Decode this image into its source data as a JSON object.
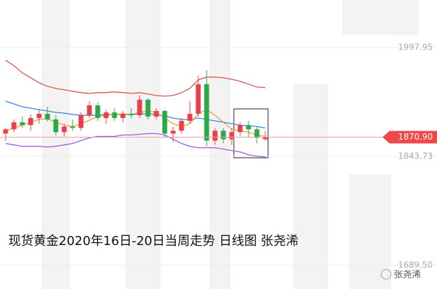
{
  "chart_data": {
    "type": "candlestick",
    "title": "现货黄金2020年16日-20日当周走势  日线图  张尧浠",
    "watermark": "张尧浠",
    "categories": [
      null,
      null,
      null,
      null,
      null,
      null,
      null,
      null,
      null,
      null,
      null,
      null,
      null,
      null,
      null,
      null,
      null,
      null,
      null,
      null,
      null,
      null,
      null,
      null,
      null,
      null,
      null,
      null,
      null,
      null,
      null,
      null
    ],
    "open": [
      1876,
      1882,
      1892,
      1888,
      1898,
      1904,
      1896,
      1878,
      1886,
      1884,
      1902,
      1916,
      1898,
      1906,
      1898,
      1904,
      1902,
      1924,
      1900,
      1908,
      1876,
      1880,
      1894,
      1904,
      1946,
      1866,
      1880,
      1868,
      1878,
      1888,
      1882,
      1868
    ],
    "high": [
      1884,
      1896,
      1900,
      1903,
      1910,
      1914,
      1902,
      1890,
      1896,
      1906,
      1922,
      1920,
      1910,
      1912,
      1908,
      1912,
      1930,
      1926,
      1912,
      1910,
      1886,
      1898,
      1922,
      1958,
      1966,
      1884,
      1884,
      1884,
      1892,
      1894,
      1886,
      1880
    ],
    "low": [
      1866,
      1878,
      1884,
      1880,
      1890,
      1893,
      1874,
      1872,
      1880,
      1880,
      1898,
      1894,
      1890,
      1894,
      1892,
      1898,
      1898,
      1896,
      1896,
      1870,
      1864,
      1876,
      1890,
      1900,
      1858,
      1860,
      1862,
      1860,
      1872,
      1870,
      1862,
      1866
    ],
    "close": [
      1882,
      1892,
      1888,
      1898,
      1904,
      1896,
      1878,
      1886,
      1884,
      1902,
      1916,
      1898,
      1906,
      1898,
      1904,
      1902,
      1924,
      1900,
      1908,
      1876,
      1880,
      1894,
      1904,
      1946,
      1866,
      1880,
      1868,
      1878,
      1888,
      1882,
      1870,
      1870.9
    ],
    "up_color": "#e8404a",
    "down_color": "#2aa84a",
    "overlays": [
      {
        "color": "#d9534f",
        "values": [
          1980,
          1972,
          1962,
          1955,
          1948,
          1943,
          1940,
          1938,
          1936,
          1934,
          1933,
          1934,
          1934,
          1935,
          1934,
          1933,
          1934,
          1932,
          1930,
          1929,
          1930,
          1934,
          1940,
          1952,
          1956,
          1956,
          1955,
          1953,
          1950,
          1946,
          1942,
          1941
        ]
      },
      {
        "color": "#3a86d9",
        "values": [
          1922,
          1918,
          1914,
          1912,
          1910,
          1908,
          1906,
          1905,
          1903,
          1902,
          1902,
          1902,
          1903,
          1903,
          1903,
          1903,
          1904,
          1904,
          1903,
          1901,
          1898,
          1896,
          1896,
          1898,
          1896,
          1894,
          1892,
          1890,
          1888,
          1887,
          1886,
          1884
        ]
      },
      {
        "color": "#a855e0",
        "values": [
          1862,
          1860,
          1858,
          1858,
          1858,
          1857,
          1858,
          1860,
          1862,
          1866,
          1870,
          1872,
          1872,
          1872,
          1874,
          1874,
          1875,
          1876,
          1876,
          1874,
          1868,
          1862,
          1858,
          1856,
          1856,
          1856,
          1854,
          1852,
          1850,
          1846,
          1844,
          1843
        ]
      },
      {
        "color": "#f0a030",
        "values": [
          1880,
          1884,
          1888,
          1892,
          1896,
          1897,
          1892,
          1888,
          1886,
          1890,
          1895,
          1900,
          1902,
          1903,
          1904,
          1903,
          1906,
          1908,
          1906,
          1898,
          1890,
          1886,
          1890,
          1904,
          1910,
          1902,
          1892,
          1882,
          1880,
          1878,
          1874,
          1872
        ]
      }
    ],
    "ylim": [
      1655.9,
      2065.2
    ],
    "yticks": [
      1997.95,
      1843.73,
      {
        "value": 1689.5,
        "label": "1689.50"
      }
    ],
    "last_price": {
      "value": 1870.9,
      "label": "1870.90"
    }
  }
}
